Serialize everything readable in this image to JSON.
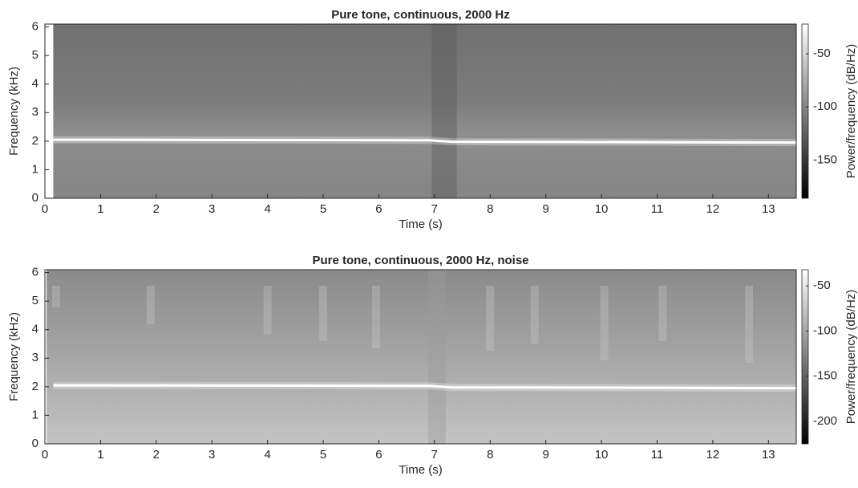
{
  "chart_data": [
    {
      "type": "spectrogram",
      "title": "Pure tone, continuous, 2000 Hz",
      "xlabel": "Time (s)",
      "ylabel": "Frequency (kHz)",
      "colorbar_label": "Power/frequency (dB/Hz)",
      "xlim": [
        0,
        13.5
      ],
      "ylim": [
        0,
        6.1
      ],
      "xticks": [
        0,
        1,
        2,
        3,
        4,
        5,
        6,
        7,
        8,
        9,
        10,
        11,
        12,
        13
      ],
      "yticks": [
        0,
        1,
        2,
        3,
        4,
        5,
        6
      ],
      "data_xlim": [
        0.15,
        13.5
      ],
      "transient": [
        6.95,
        7.4
      ],
      "clim": [
        -186,
        -22
      ],
      "cticks": [
        -150,
        -100,
        -50
      ],
      "colormap": "gray",
      "ridge": {
        "x": [
          0.15,
          6.9,
          7.3,
          13.5
        ],
        "values": [
          2.05,
          2.03,
          1.98,
          1.95
        ]
      }
    },
    {
      "type": "spectrogram",
      "title": "Pure tone, continuous, 2000 Hz, noise",
      "xlabel": "Time (s)",
      "ylabel": "Frequency (kHz)",
      "colorbar_label": "Power/frequency (dB/Hz)",
      "xlim": [
        0,
        13.5
      ],
      "ylim": [
        0,
        6.1
      ],
      "xticks": [
        0,
        1,
        2,
        3,
        4,
        5,
        6,
        7,
        8,
        9,
        10,
        11,
        12,
        13
      ],
      "yticks": [
        0,
        1,
        2,
        3,
        4,
        5,
        6
      ],
      "data_xlim": [
        0.03,
        13.5
      ],
      "clim": [
        -225,
        -32
      ],
      "cticks": [
        -200,
        -150,
        -100,
        -50
      ],
      "colormap": "gray",
      "ridge": {
        "x": [
          0.15,
          6.9,
          7.3,
          13.5
        ],
        "values": [
          2.05,
          2.03,
          1.98,
          1.95
        ]
      }
    }
  ]
}
